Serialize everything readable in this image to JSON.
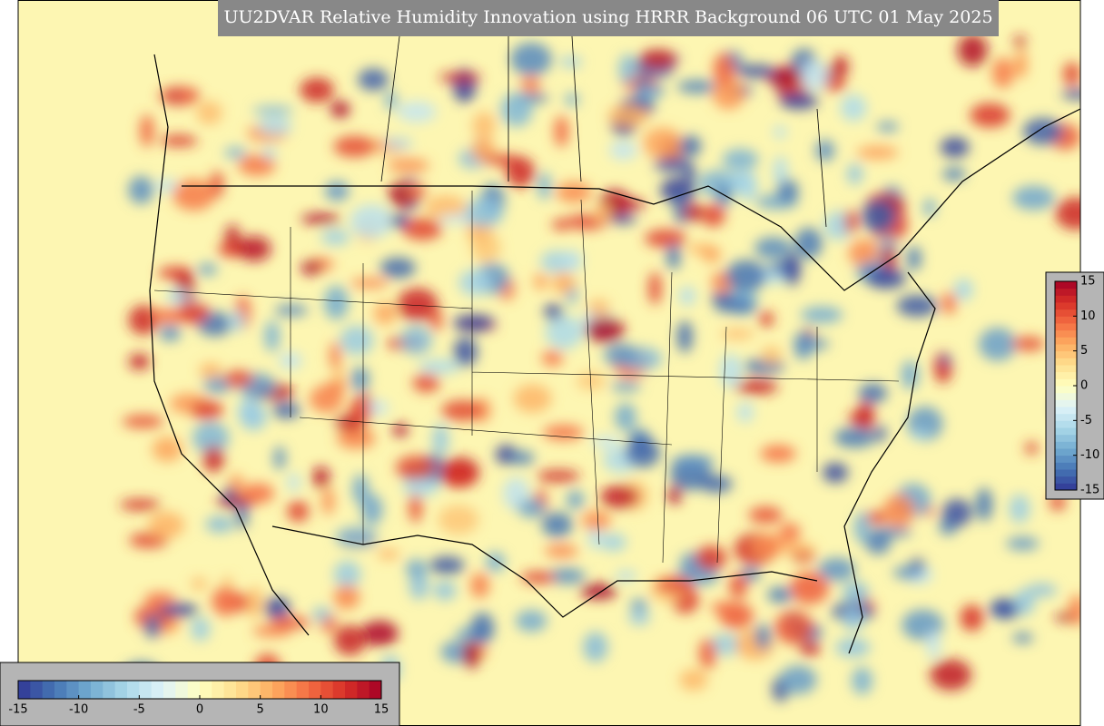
{
  "title": "UU2DVAR Relative Humidity Innovation using HRRR Background 06 UTC 01 May 2025",
  "horizontal_colorbar": {
    "ticks": [
      -15,
      -10,
      -5,
      0,
      5,
      10,
      15
    ]
  },
  "vertical_colorbar": {
    "ticks": [
      -15,
      -10,
      -5,
      0,
      5,
      10,
      15
    ]
  }
}
